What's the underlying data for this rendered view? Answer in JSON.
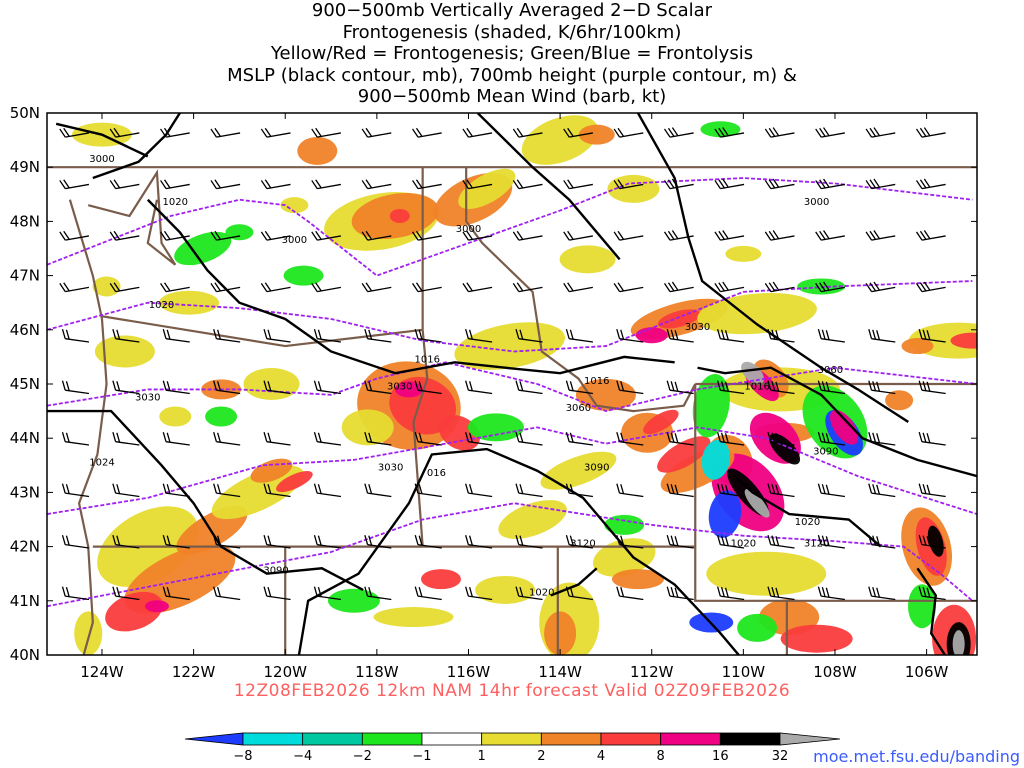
{
  "title": {
    "line1": "900−500mb Vertically Averaged 2−D Scalar",
    "line2": "Frontogenesis (shaded, K/6hr/100km)",
    "line3": "Yellow/Red = Frontogenesis;  Green/Blue = Frontolysis",
    "line4": "MSLP (black contour, mb), 700mb height (purple contour, m) &",
    "line5": "900−500mb Mean Wind (barb, kt)"
  },
  "axes": {
    "lat_labels": [
      "50N",
      "49N",
      "48N",
      "47N",
      "46N",
      "45N",
      "44N",
      "43N",
      "42N",
      "41N",
      "40N"
    ],
    "lon_labels": [
      "124W",
      "122W",
      "120W",
      "118W",
      "116W",
      "114W",
      "112W",
      "110W",
      "108W",
      "106W"
    ]
  },
  "footer": {
    "valid_text": "12Z08FEB2026 12km NAM 14hr forecast Valid 02Z09FEB2026",
    "credit": "moe.met.fsu.edu/banding"
  },
  "colors": {
    "yellow": "#e6dc32",
    "orange": "#f08228",
    "red": "#fa3c3c",
    "magenta": "#f00082",
    "black": "#000000",
    "gray": "#aaaaaa",
    "green": "#1ee61e",
    "teal": "#00c8a0",
    "cyan": "#00dcdc",
    "blue": "#1e3cff",
    "pressure": "#000000",
    "height": "#a020f0",
    "borders": "#7a5c4a"
  },
  "colorbar": {
    "labels": [
      "−8",
      "−4",
      "−2",
      "−1",
      "1",
      "2",
      "4",
      "8",
      "16",
      "32"
    ],
    "colors": [
      "#1e3cff",
      "#00dcdc",
      "#00c8a0",
      "#1ee61e",
      "#ffffff",
      "#e6dc32",
      "#f08228",
      "#fa3c3c",
      "#f00082",
      "#000000",
      "#aaaaaa"
    ]
  },
  "contour_labels": {
    "mslp": [
      "1020",
      "1020",
      "1024",
      "1016",
      "1016",
      "016",
      "1016",
      "1020",
      "1020",
      "1020"
    ],
    "heights": [
      "3000",
      "3000",
      "3000",
      "3030",
      "3030",
      "3030",
      "3060",
      "3090",
      "3090",
      "3090",
      "3120",
      "3120",
      "3030",
      "3060",
      "3000"
    ]
  }
}
